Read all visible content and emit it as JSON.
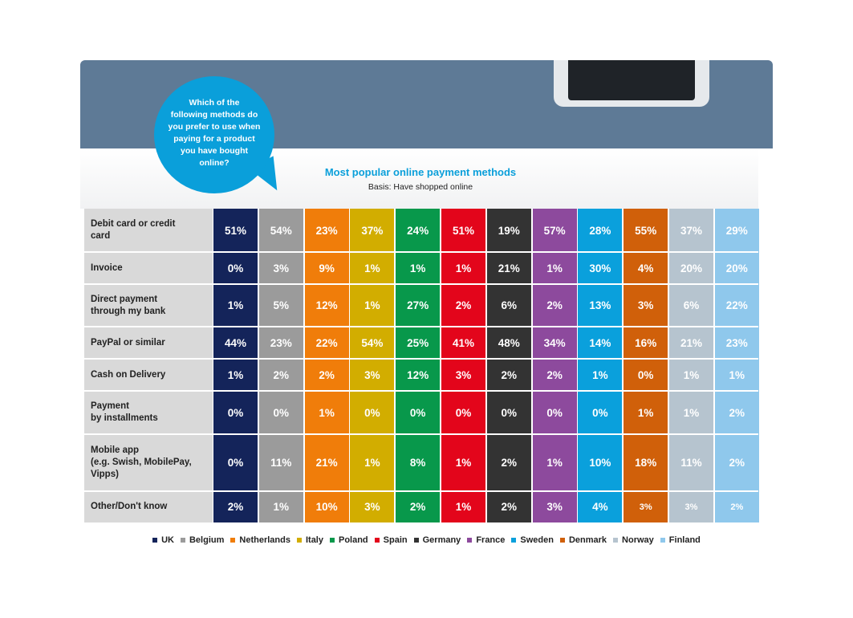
{
  "question": "Which of the\nfollowing methods do\nyou prefer to use when\npaying for a product\nyou have bought\nonline?",
  "chart_data": {
    "type": "table",
    "title": "Most popular online payment methods",
    "subtitle": "Basis: Have shopped online",
    "rows": [
      "Debit card or credit\ncard",
      "Invoice",
      "Direct payment\nthrough my bank",
      "PayPal or similar",
      "Cash on Delivery",
      "Payment\nby installments",
      "Mobile app\n(e.g. Swish, MobilePay,\nVipps)",
      "Other/Don't know"
    ],
    "series": [
      {
        "name": "UK",
        "color": "#14245a",
        "values": [
          "51%",
          "0%",
          "1%",
          "44%",
          "1%",
          "0%",
          "0%",
          "2%"
        ]
      },
      {
        "name": "Belgium",
        "color": "#9b9b9b",
        "values": [
          "54%",
          "3%",
          "5%",
          "23%",
          "2%",
          "0%",
          "11%",
          "1%"
        ]
      },
      {
        "name": "Netherlands",
        "color": "#f07d0a",
        "values": [
          "23%",
          "9%",
          "12%",
          "22%",
          "2%",
          "1%",
          "21%",
          "10%"
        ]
      },
      {
        "name": "Italy",
        "color": "#d2ad00",
        "values": [
          "37%",
          "1%",
          "1%",
          "54%",
          "3%",
          "0%",
          "1%",
          "3%"
        ]
      },
      {
        "name": "Poland",
        "color": "#08984b",
        "values": [
          "24%",
          "1%",
          "27%",
          "25%",
          "12%",
          "0%",
          "8%",
          "2%"
        ]
      },
      {
        "name": "Spain",
        "color": "#e3051b",
        "values": [
          "51%",
          "1%",
          "2%",
          "41%",
          "3%",
          "0%",
          "1%",
          "1%"
        ]
      },
      {
        "name": "Germany",
        "color": "#333333",
        "values": [
          "19%",
          "21%",
          "6%",
          "48%",
          "2%",
          "0%",
          "2%",
          "2%"
        ]
      },
      {
        "name": "France",
        "color": "#8d4a9d",
        "values": [
          "57%",
          "1%",
          "2%",
          "34%",
          "2%",
          "0%",
          "1%",
          "3%"
        ]
      },
      {
        "name": "Sweden",
        "color": "#0aa0dc",
        "values": [
          "28%",
          "30%",
          "13%",
          "14%",
          "1%",
          "0%",
          "10%",
          "4%"
        ]
      },
      {
        "name": "Denmark",
        "color": "#d0600a",
        "values": [
          "55%",
          "4%",
          "3%",
          "16%",
          "0%",
          "1%",
          "18%",
          "3%"
        ]
      },
      {
        "name": "Norway",
        "color": "#b6c4cf",
        "values": [
          "37%",
          "20%",
          "6%",
          "21%",
          "1%",
          "1%",
          "11%",
          "3%"
        ]
      },
      {
        "name": "Finland",
        "color": "#8fc8ec",
        "values": [
          "29%",
          "20%",
          "22%",
          "23%",
          "1%",
          "2%",
          "2%",
          "2%"
        ]
      }
    ]
  }
}
